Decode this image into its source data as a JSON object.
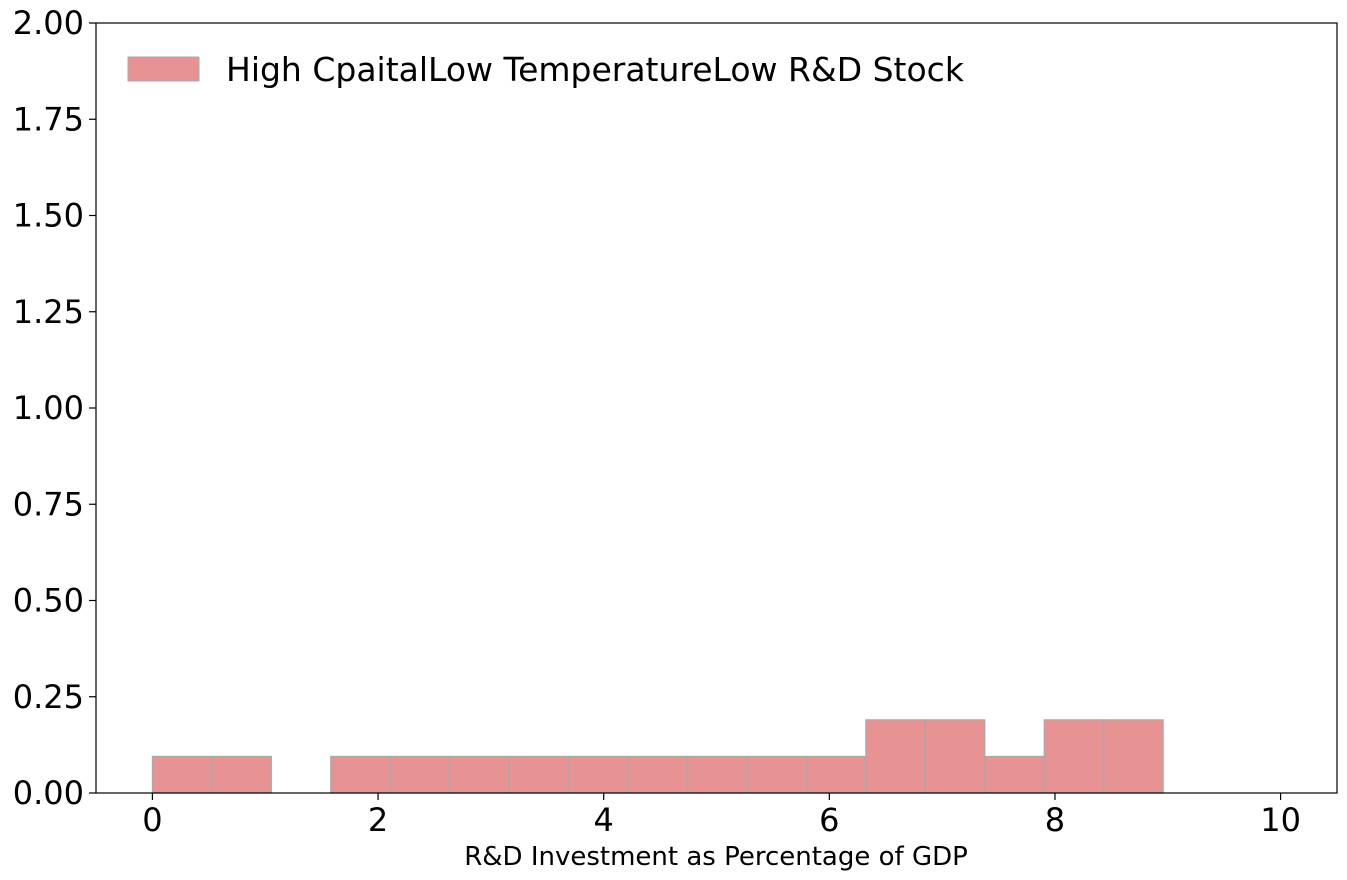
{
  "chart_data": {
    "type": "bar",
    "subtype": "histogram",
    "title": "",
    "xlabel": "R&D Investment as Percentage of GDP",
    "ylabel": "",
    "xlim": [
      -0.5,
      10.5
    ],
    "ylim": [
      0,
      2.0
    ],
    "x_ticks": [
      0,
      2,
      4,
      6,
      8,
      10
    ],
    "y_ticks": [
      0.0,
      0.25,
      0.5,
      0.75,
      1.0,
      1.25,
      1.5,
      1.75,
      2.0
    ],
    "x_tick_labels": [
      "0",
      "2",
      "4",
      "6",
      "8",
      "10"
    ],
    "y_tick_labels": [
      "0.00",
      "0.25",
      "0.50",
      "0.75",
      "1.00",
      "1.25",
      "1.50",
      "1.75",
      "2.00"
    ],
    "grid": false,
    "legend_position": "top-left",
    "bin_edges": [
      0.0,
      0.527,
      1.054,
      1.581,
      2.108,
      2.635,
      3.162,
      3.689,
      4.216,
      4.743,
      5.27,
      5.797,
      6.324,
      6.851,
      7.378,
      7.905,
      8.432,
      8.959
    ],
    "series": [
      {
        "name": "High CpaitalLow TemperatureLow R&D Stock",
        "color": "#e38080",
        "edge_color": "#a9a9a9",
        "values": [
          0.095,
          0.095,
          0.0,
          0.095,
          0.095,
          0.095,
          0.095,
          0.095,
          0.095,
          0.095,
          0.095,
          0.095,
          0.19,
          0.19,
          0.095,
          0.19,
          0.19
        ]
      }
    ]
  }
}
